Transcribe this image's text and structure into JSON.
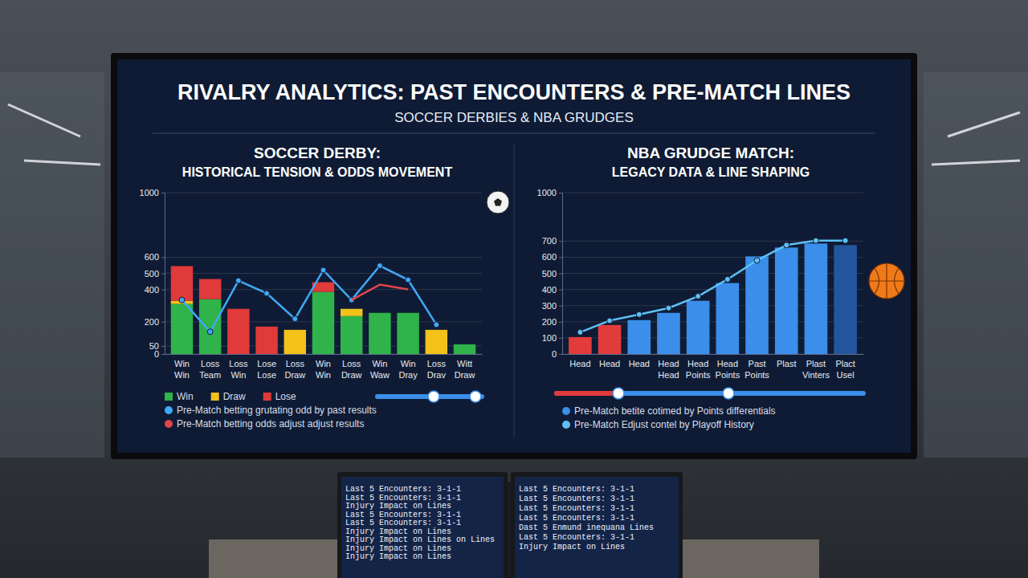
{
  "header": {
    "title": "RIVALRY ANALYTICS: PAST ENCOUNTERS & PRE-MATCH LINES",
    "subtitle": "SOCCER DERBIES & NBA GRUDGES"
  },
  "chart_data": [
    {
      "type": "bar",
      "title": "SOCCER DERBY:",
      "subtitle": "HISTORICAL TENSION & ODDS MOVEMENT",
      "stacked": true,
      "grid": true,
      "legend": "bottom",
      "categories": [
        [
          "Win",
          "Win"
        ],
        [
          "Loss",
          "Team"
        ],
        [
          "Loss",
          "Win"
        ],
        [
          "Lose",
          "Lose"
        ],
        [
          "Loss",
          "Draw"
        ],
        [
          "Win",
          "Win"
        ],
        [
          "Loss",
          "Draw"
        ],
        [
          "Win",
          "Waw"
        ],
        [
          "Win",
          "Dray"
        ],
        [
          "Loss",
          "Drav"
        ],
        [
          "Witt",
          "Draw"
        ]
      ],
      "ylim": [
        0,
        1000
      ],
      "yticks": [
        0,
        50,
        200,
        400,
        500,
        600,
        1000
      ],
      "series": [
        {
          "name": "Win",
          "type": "bar",
          "color": "#2fb34a",
          "values": [
            310,
            340,
            0,
            0,
            0,
            385,
            235,
            255,
            255,
            0,
            60
          ]
        },
        {
          "name": "Draw",
          "type": "bar",
          "color": "#f2c21b",
          "values": [
            20,
            0,
            0,
            0,
            150,
            0,
            45,
            0,
            0,
            150,
            0
          ]
        },
        {
          "name": "Lose",
          "type": "bar",
          "color": "#e03a3a",
          "values": [
            215,
            125,
            280,
            170,
            0,
            60,
            0,
            0,
            0,
            0,
            0
          ]
        },
        {
          "name": "Pre-Match betting grutating odd by past results",
          "type": "line",
          "color": "#3fa9f5",
          "marker": "circle",
          "values": [
            335,
            138,
            455,
            376,
            218,
            520,
            335,
            547,
            460,
            182,
            null
          ]
        },
        {
          "name": "Pre-Match betting odds adjust adjust results",
          "type": "line",
          "color": "#e0454a",
          "marker": "none",
          "values": [
            null,
            null,
            null,
            null,
            null,
            null,
            335,
            430,
            400,
            null,
            null
          ]
        }
      ]
    },
    {
      "type": "bar",
      "title": "NBA GRUDGE MATCH:",
      "subtitle": "LEGACY DATA & LINE SHAPING",
      "grid": true,
      "legend": "bottom",
      "categories": [
        [
          "Head"
        ],
        [
          "Head"
        ],
        [
          "Head"
        ],
        [
          "Head",
          "Head"
        ],
        [
          "Head",
          "Points"
        ],
        [
          "Head",
          "Points"
        ],
        [
          "Past",
          "Points"
        ],
        [
          "Plast"
        ],
        [
          "Plast",
          "Vinters"
        ],
        [
          "Plact",
          "Usel"
        ]
      ],
      "ylim": [
        0,
        1000
      ],
      "yticks": [
        0,
        100,
        200,
        300,
        400,
        500,
        600,
        700,
        1000
      ],
      "series": [
        {
          "name": "Pre-Match betite cotimed by Points differentials",
          "type": "bar",
          "color": "#3b8eea",
          "colors": [
            "#e23b3b",
            "#e23b3b",
            "#3b8eea",
            "#3b8eea",
            "#3b8eea",
            "#3b8eea",
            "#3b8eea",
            "#3b8eea",
            "#3b8eea",
            "#24569e"
          ],
          "values": [
            105,
            180,
            210,
            255,
            330,
            440,
            605,
            660,
            685,
            675
          ]
        },
        {
          "name": "Pre-Match Edjust contel by Playoff History",
          "type": "line",
          "color": "#5fc0f5",
          "marker": "circle",
          "values": [
            135,
            207,
            245,
            285,
            358,
            463,
            580,
            675,
            703,
            703
          ]
        }
      ]
    }
  ],
  "monitors": [
    {
      "lines": [
        "Last 5 Encounters: 3-1-1",
        "Last 5 Encounters: 3-1-1",
        "Injury Impact on Lines",
        "Last 5 Encounters: 3-1-1",
        "Last 5 Encounters: 3-1-1",
        "Injury Impact on Lines",
        "Injury Impact on Lines on Lines",
        "Injury Impact on Lines",
        "Injury Impact on Lines"
      ]
    },
    {
      "lines": [
        "Last 5 Encounters: 3-1-1",
        "Last 5 Encounters: 3-1-1",
        "Last 5 Encounters: 3-1-1",
        "Last 5 Encounters: 3-1-1",
        "Dast 5 Enmund inequana Lines",
        "Last 5 Encounters: 3-1-1",
        "Injury Impact on Lines"
      ]
    }
  ]
}
